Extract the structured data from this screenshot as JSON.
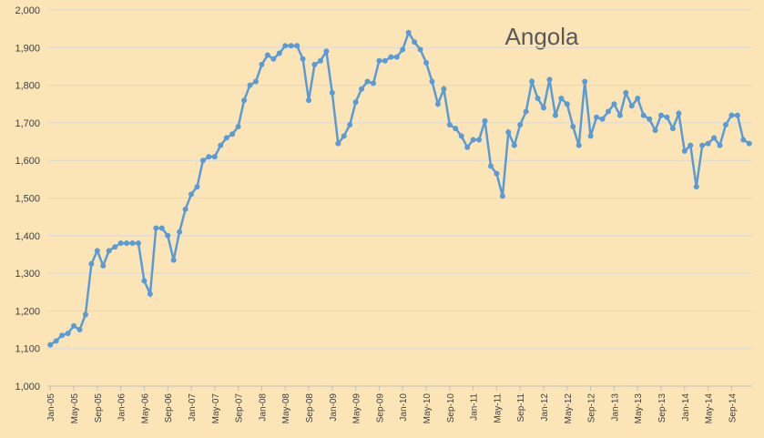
{
  "chart_data": {
    "type": "line",
    "title": "Angola",
    "categories": [
      "Jan-05",
      null,
      null,
      null,
      "May-05",
      null,
      null,
      null,
      "Sep-05",
      null,
      null,
      null,
      "Jan-06",
      null,
      null,
      null,
      "May-06",
      null,
      null,
      null,
      "Sep-06",
      null,
      null,
      null,
      "Jan-07",
      null,
      null,
      null,
      "May-07",
      null,
      null,
      null,
      "Sep-07",
      null,
      null,
      null,
      "Jan-08",
      null,
      null,
      null,
      "May-08",
      null,
      null,
      null,
      "Sep-08",
      null,
      null,
      null,
      "Jan-09",
      null,
      null,
      null,
      "May-09",
      null,
      null,
      null,
      "Sep-09",
      null,
      null,
      null,
      "Jan-10",
      null,
      null,
      null,
      "May-10",
      null,
      null,
      null,
      "Sep-10",
      null,
      null,
      null,
      "Jan-11",
      null,
      null,
      null,
      "May-11",
      null,
      null,
      null,
      "Sep-11",
      null,
      null,
      null,
      "Jan-12",
      null,
      null,
      null,
      "May-12",
      null,
      null,
      null,
      "Sep-12",
      null,
      null,
      null,
      "Jan-13",
      null,
      null,
      null,
      "May-13",
      null,
      null,
      null,
      "Sep-13",
      null,
      null,
      null,
      "Jan-14",
      null,
      null,
      null,
      "May-14",
      null,
      null,
      null,
      "Sep-14",
      null,
      null,
      null
    ],
    "values": [
      1110,
      1120,
      1135,
      1140,
      1160,
      1150,
      1190,
      1325,
      1360,
      1320,
      1360,
      1370,
      1380,
      1380,
      1380,
      1380,
      1280,
      1245,
      1420,
      1420,
      1400,
      1335,
      1410,
      1470,
      1510,
      1530,
      1600,
      1610,
      1610,
      1640,
      1660,
      1670,
      1690,
      1760,
      1800,
      1810,
      1855,
      1880,
      1870,
      1885,
      1905,
      1905,
      1905,
      1870,
      1760,
      1855,
      1865,
      1890,
      1780,
      1645,
      1665,
      1695,
      1755,
      1790,
      1810,
      1805,
      1865,
      1865,
      1875,
      1875,
      1895,
      1940,
      1915,
      1895,
      1860,
      1810,
      1750,
      1790,
      1695,
      1685,
      1665,
      1635,
      1655,
      1655,
      1705,
      1585,
      1565,
      1505,
      1675,
      1640,
      1695,
      1730,
      1810,
      1765,
      1740,
      1815,
      1720,
      1765,
      1750,
      1690,
      1640,
      1810,
      1665,
      1715,
      1710,
      1730,
      1750,
      1720,
      1780,
      1745,
      1765,
      1720,
      1710,
      1680,
      1720,
      1715,
      1685,
      1725,
      1625,
      1640,
      1530,
      1640,
      1645,
      1660,
      1640,
      1695,
      1720,
      1720,
      1655,
      1645
    ],
    "color": "#5b9bd5",
    "ylim": [
      1000,
      2000
    ],
    "yticks": [
      {
        "value": 1000,
        "label": "1,000"
      },
      {
        "value": 1100,
        "label": "1,100"
      },
      {
        "value": 1200,
        "label": "1,200"
      },
      {
        "value": 1300,
        "label": "1,300"
      },
      {
        "value": 1400,
        "label": "1,400"
      },
      {
        "value": 1500,
        "label": "1,500"
      },
      {
        "value": 1600,
        "label": "1,600"
      },
      {
        "value": 1700,
        "label": "1,700"
      },
      {
        "value": 1800,
        "label": "1,800"
      },
      {
        "value": 1900,
        "label": "1,900"
      },
      {
        "value": 2000,
        "label": "2,000"
      }
    ],
    "grid": true
  }
}
